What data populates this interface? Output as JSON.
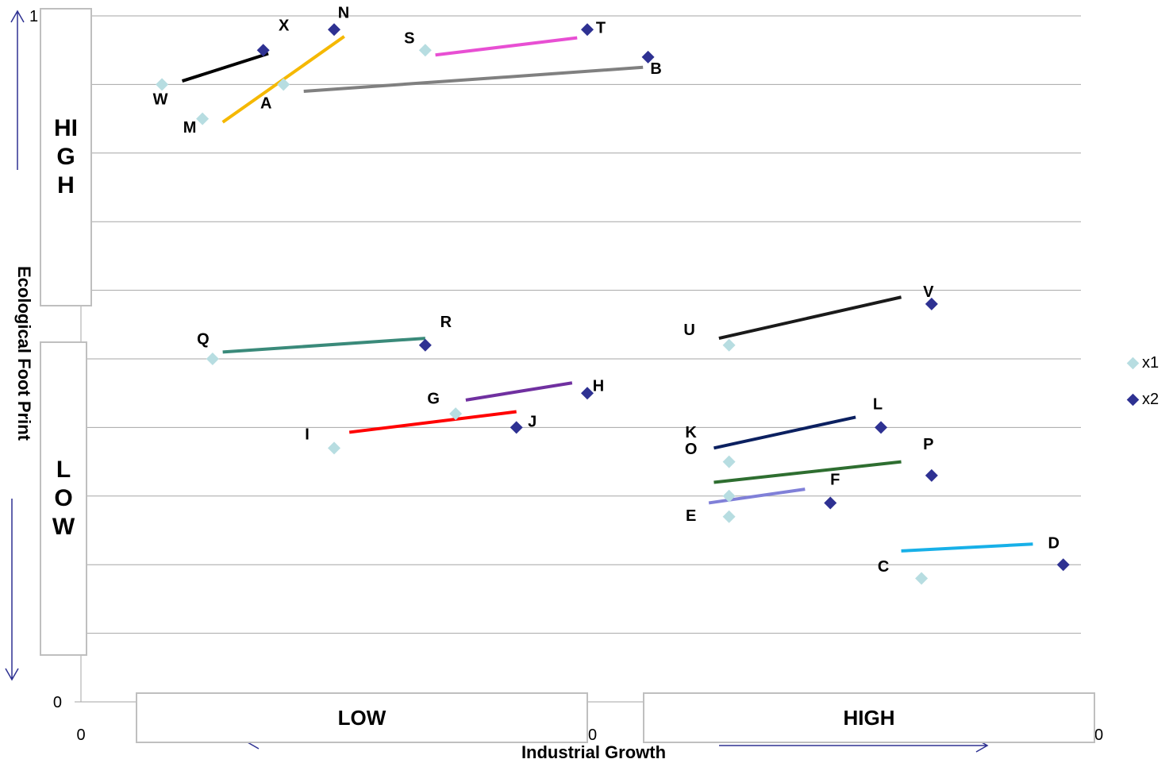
{
  "chart_data": {
    "type": "scatter",
    "xlabel": "Industrial Growth",
    "ylabel": "Ecological Foot Print",
    "xlim": [
      0,
      100
    ],
    "ylim": [
      0,
      1
    ],
    "x_tick_labels": [
      "0",
      "0",
      "0"
    ],
    "y_tick_labels": [
      "0",
      "1"
    ],
    "grid": "horizontal",
    "legend_position": "right",
    "series": [
      {
        "name": "x1",
        "color": "#b7dde1",
        "marker": "diamond",
        "points": [
          {
            "label": "W",
            "x": 8,
            "y": 0.9
          },
          {
            "label": "M",
            "x": 12,
            "y": 0.85
          },
          {
            "label": "A",
            "x": 20,
            "y": 0.9
          },
          {
            "label": "S",
            "x": 34,
            "y": 0.95
          },
          {
            "label": "Q",
            "x": 13,
            "y": 0.5
          },
          {
            "label": "G",
            "x": 37,
            "y": 0.42
          },
          {
            "label": "I",
            "x": 25,
            "y": 0.37
          },
          {
            "label": "U",
            "x": 64,
            "y": 0.52
          },
          {
            "label": "K",
            "x": 64,
            "y": 0.35
          },
          {
            "label": "O",
            "x": 64,
            "y": 0.3
          },
          {
            "label": "E",
            "x": 64,
            "y": 0.27
          },
          {
            "label": "C",
            "x": 83,
            "y": 0.18
          }
        ]
      },
      {
        "name": "x2",
        "color": "#2e3192",
        "marker": "diamond",
        "points": [
          {
            "label": "X",
            "x": 18,
            "y": 0.95
          },
          {
            "label": "N",
            "x": 25,
            "y": 0.98
          },
          {
            "label": "T",
            "x": 50,
            "y": 0.98
          },
          {
            "label": "B",
            "x": 56,
            "y": 0.94
          },
          {
            "label": "R",
            "x": 34,
            "y": 0.52
          },
          {
            "label": "H",
            "x": 50,
            "y": 0.45
          },
          {
            "label": "J",
            "x": 43,
            "y": 0.4
          },
          {
            "label": "V",
            "x": 84,
            "y": 0.58
          },
          {
            "label": "L",
            "x": 79,
            "y": 0.4
          },
          {
            "label": "P",
            "x": 84,
            "y": 0.33
          },
          {
            "label": "F",
            "x": 74,
            "y": 0.29
          },
          {
            "label": "D",
            "x": 97,
            "y": 0.2
          }
        ]
      }
    ],
    "trend_lines": [
      {
        "from": "W",
        "to": "X",
        "color": "#000000",
        "x1": 10,
        "y1": 0.905,
        "x2": 18.5,
        "y2": 0.945
      },
      {
        "from": "M",
        "to": "N",
        "color": "#f5b800",
        "x1": 14,
        "y1": 0.845,
        "x2": 26,
        "y2": 0.97
      },
      {
        "from": "A",
        "to": "B",
        "color": "#808080",
        "x1": 22,
        "y1": 0.89,
        "x2": 55.5,
        "y2": 0.925
      },
      {
        "from": "S",
        "to": "T",
        "color": "#e84fd3",
        "x1": 35,
        "y1": 0.943,
        "x2": 49,
        "y2": 0.968
      },
      {
        "from": "Q",
        "to": "R",
        "color": "#3a8a7a",
        "x1": 14,
        "y1": 0.51,
        "x2": 34,
        "y2": 0.53
      },
      {
        "from": "G",
        "to": "H",
        "color": "#7030a0",
        "x1": 38,
        "y1": 0.44,
        "x2": 48.5,
        "y2": 0.465
      },
      {
        "from": "I",
        "to": "J",
        "color": "#ff0000",
        "x1": 26.5,
        "y1": 0.393,
        "x2": 43,
        "y2": 0.423
      },
      {
        "from": "U",
        "to": "V",
        "color": "#1a1a1a",
        "x1": 63,
        "y1": 0.53,
        "x2": 81,
        "y2": 0.59
      },
      {
        "from": "K",
        "to": "L",
        "color": "#0b2060",
        "x1": 62.5,
        "y1": 0.37,
        "x2": 76.5,
        "y2": 0.415
      },
      {
        "from": "O",
        "to": "P",
        "color": "#2e6e30",
        "x1": 62.5,
        "y1": 0.32,
        "x2": 81,
        "y2": 0.35
      },
      {
        "from": "E",
        "to": "F",
        "color": "#8080d8",
        "x1": 62,
        "y1": 0.29,
        "x2": 71.5,
        "y2": 0.31
      },
      {
        "from": "C",
        "to": "D",
        "color": "#17b0e8",
        "x1": 81,
        "y1": 0.22,
        "x2": 94,
        "y2": 0.23
      }
    ],
    "annotations": {
      "y_high": "HIGH",
      "y_low": "LOW",
      "x_low": "LOW",
      "x_high": "HIGH"
    }
  },
  "legend": [
    {
      "label": "x1",
      "color": "#b7dde1"
    },
    {
      "label": "x2",
      "color": "#2e3192"
    }
  ]
}
